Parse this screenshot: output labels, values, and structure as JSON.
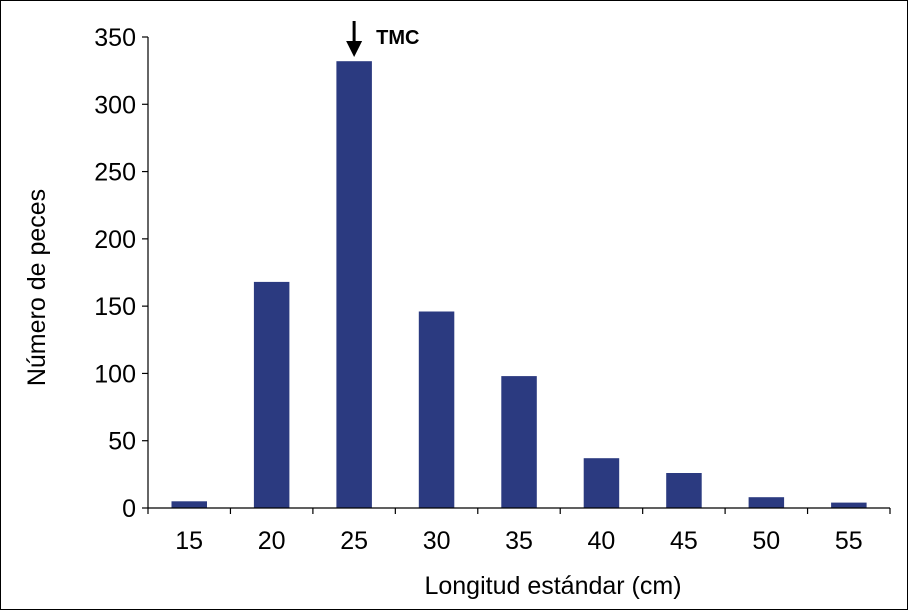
{
  "chart_data": {
    "type": "bar",
    "title": "",
    "xlabel": "Longitud estándar (cm)",
    "ylabel": "Número de peces",
    "categories": [
      "15",
      "20",
      "25",
      "30",
      "35",
      "40",
      "45",
      "50",
      "55"
    ],
    "values": [
      5,
      168,
      332,
      146,
      98,
      37,
      26,
      8,
      4
    ],
    "ylim": [
      0,
      350
    ],
    "yticks": [
      "0",
      "50",
      "100",
      "150",
      "200",
      "250",
      "300",
      "350"
    ],
    "grid": false,
    "legend": "none",
    "bar_color": "#2B3A80",
    "annotation": {
      "text": "TMC",
      "category": "25",
      "marker": "down-arrow"
    }
  }
}
